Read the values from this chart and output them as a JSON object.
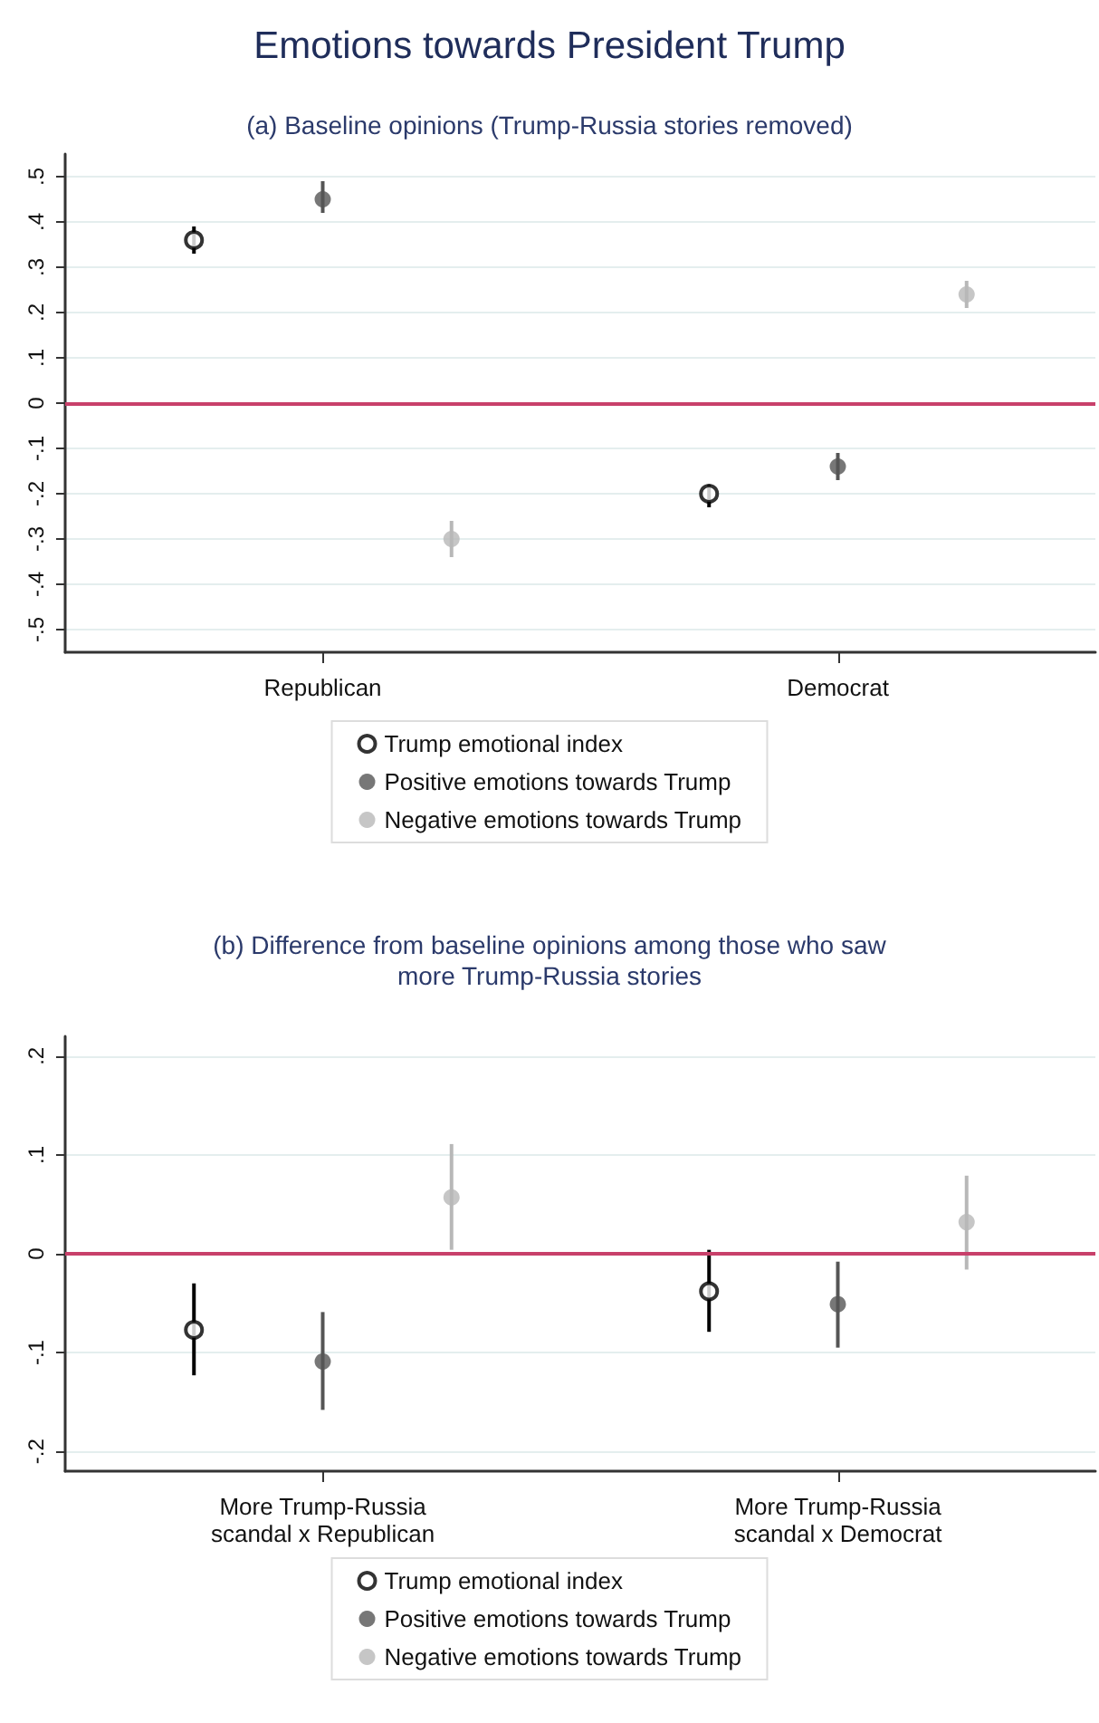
{
  "chart_data": [
    {
      "type": "scatter",
      "title": "Emotions towards President Trump",
      "subtitle": "(a) Baseline opinions (Trump-Russia stories removed)",
      "categories": [
        "Republican",
        "Democrat"
      ],
      "series": [
        {
          "name": "Trump emotional index",
          "color": "#000000",
          "values": [
            0.36,
            -0.2
          ],
          "errors": [
            [
              0.33,
              0.39
            ],
            [
              -0.23,
              -0.18
            ]
          ]
        },
        {
          "name": "Positive emotions towards Trump",
          "color": "#555555",
          "values": [
            0.45,
            -0.14
          ],
          "errors": [
            [
              0.42,
              0.49
            ],
            [
              -0.17,
              -0.11
            ]
          ]
        },
        {
          "name": "Negative emotions towards Trump",
          "color": "#b8b8b8",
          "values": [
            -0.3,
            0.24
          ],
          "errors": [
            [
              -0.34,
              -0.26
            ],
            [
              0.21,
              0.27
            ]
          ]
        }
      ],
      "ylim": [
        -0.55,
        0.55
      ],
      "yticks": [
        {
          "value": -0.5,
          "label": "-.5"
        },
        {
          "value": -0.4,
          "label": "-.4"
        },
        {
          "value": -0.3,
          "label": "-.3"
        },
        {
          "value": -0.2,
          "label": "-.2"
        },
        {
          "value": -0.1,
          "label": "-.1"
        },
        0,
        {
          "value": 0.1,
          "label": ".1"
        },
        {
          "value": 0.2,
          "label": ".2"
        },
        {
          "value": 0.3,
          "label": ".3"
        },
        {
          "value": 0.4,
          "label": ".4"
        },
        {
          "value": 0.5,
          "label": ".5"
        }
      ],
      "ref_lines": [
        {
          "axis": "y",
          "value": 0,
          "color": "#c8406a"
        }
      ],
      "grid": "y",
      "legend": "bottom",
      "marker": "circle"
    },
    {
      "type": "scatter",
      "title": "(b) Difference from baseline opinions among those who saw\nmore Trump-Russia stories",
      "categories": [
        "More Trump-Russia\nscandal x Republican",
        "More Trump-Russia\nscandal x Democrat"
      ],
      "series": [
        {
          "name": "Trump emotional index",
          "color": "#000000",
          "values": [
            -0.077,
            -0.038
          ],
          "errors": [
            [
              -0.123,
              -0.03
            ],
            [
              -0.079,
              0.004
            ]
          ]
        },
        {
          "name": "Positive emotions towards Trump",
          "color": "#555555",
          "values": [
            -0.109,
            -0.051
          ],
          "errors": [
            [
              -0.158,
              -0.059
            ],
            [
              -0.095,
              -0.008
            ]
          ]
        },
        {
          "name": "Negative emotions towards Trump",
          "color": "#b8b8b8",
          "values": [
            0.057,
            0.032
          ],
          "errors": [
            [
              0.004,
              0.111
            ],
            [
              -0.016,
              0.079
            ]
          ]
        }
      ],
      "ylim": [
        -0.22,
        0.22
      ],
      "yticks": [
        {
          "value": -0.2,
          "label": "-.2"
        },
        {
          "value": -0.1,
          "label": "-.1"
        },
        0,
        {
          "value": 0.1,
          "label": ".1"
        },
        {
          "value": 0.2,
          "label": ".2"
        }
      ],
      "ref_lines": [
        {
          "axis": "y",
          "value": 0,
          "color": "#c8406a"
        }
      ],
      "grid": "y",
      "legend": "bottom",
      "marker": "circle"
    }
  ]
}
